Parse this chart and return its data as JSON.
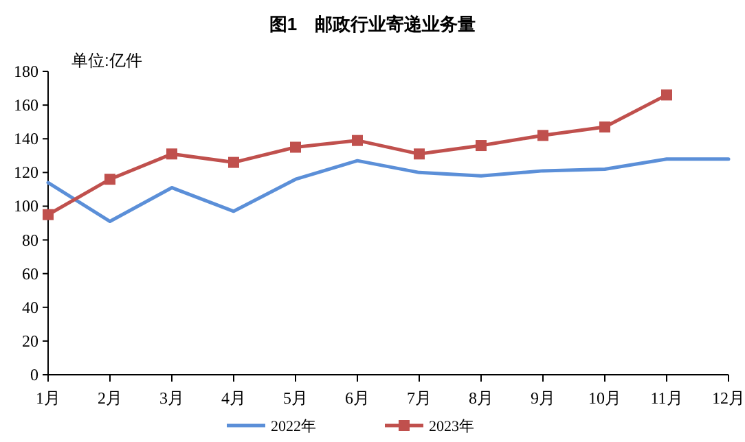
{
  "chart_data": {
    "type": "line",
    "title": "图1　邮政行业寄递业务量",
    "annotations": [
      "单位:亿件"
    ],
    "categories": [
      "1月",
      "2月",
      "3月",
      "4月",
      "5月",
      "6月",
      "7月",
      "8月",
      "9月",
      "10月",
      "11月",
      "12月"
    ],
    "series": [
      {
        "name": "2022年",
        "color": "#5b8fd8",
        "marker": "none",
        "values": [
          114,
          91,
          111,
          97,
          116,
          127,
          120,
          118,
          121,
          122,
          128,
          128
        ]
      },
      {
        "name": "2023年",
        "color": "#c0504d",
        "marker": "square",
        "values": [
          95,
          116,
          131,
          126,
          135,
          139,
          131,
          136,
          142,
          147,
          166,
          null
        ]
      }
    ],
    "ylim": [
      0,
      180
    ],
    "yticks": [
      0,
      20,
      40,
      60,
      80,
      100,
      120,
      140,
      160,
      180
    ],
    "grid": false,
    "legend": "bottom",
    "line_style": "solid"
  }
}
